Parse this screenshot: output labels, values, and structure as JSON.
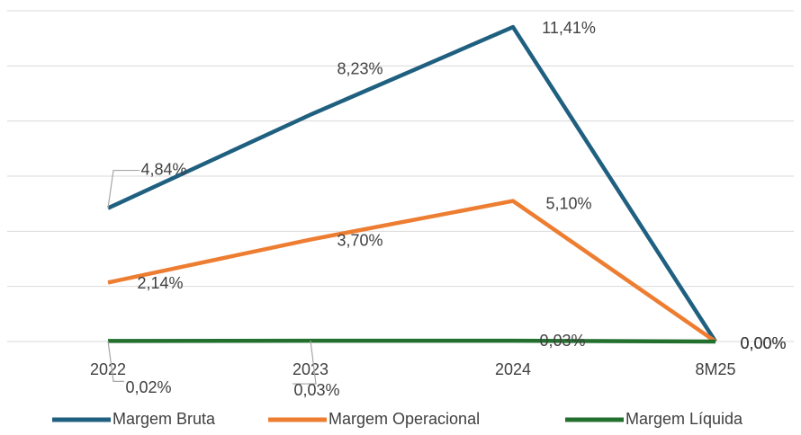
{
  "chart_data": {
    "type": "line",
    "categories": [
      "2022",
      "2023",
      "2024",
      "8M25"
    ],
    "series": [
      {
        "name": "Margem Bruta",
        "color": "#1f5f80",
        "values": [
          4.84,
          8.23,
          11.41,
          0
        ],
        "value_labels": [
          "4,84%",
          "8,23%",
          "11,41%",
          "0,00%"
        ]
      },
      {
        "name": "Margem Operacional",
        "color": "#ed7d31",
        "values": [
          2.14,
          3.7,
          5.1,
          0
        ],
        "value_labels": [
          "2,14%",
          "3,70%",
          "5,10%",
          "0,00%"
        ]
      },
      {
        "name": "Margem Líquida",
        "color": "#23702e",
        "values": [
          0.02,
          0.03,
          0.03,
          0
        ],
        "value_labels": [
          "0,02%",
          "0,03%",
          "0,03%",
          "0,00%"
        ]
      }
    ],
    "ylim": [
      0,
      12
    ],
    "yticks": [
      0,
      2,
      4,
      6,
      8,
      10,
      12
    ],
    "grid": true,
    "legend": "bottom"
  }
}
